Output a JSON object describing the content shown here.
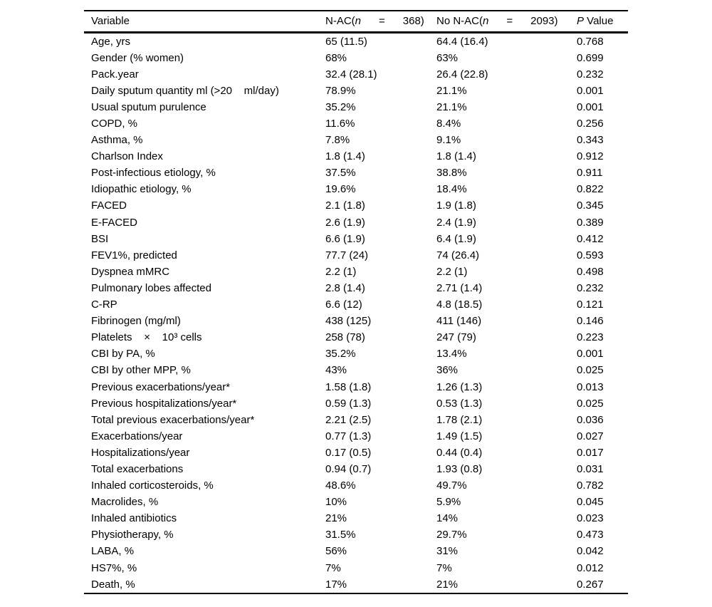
{
  "page": {
    "background_color": "#ffffff",
    "text_color": "#000000"
  },
  "table": {
    "headers": {
      "variable": "Variable",
      "nac": {
        "prefix": "N-AC(",
        "italic": "n",
        "suffix": "      =      368)"
      },
      "no_nac": {
        "prefix": "No N-AC(",
        "italic": "n",
        "suffix": "      =      2093)"
      },
      "p_value": {
        "italic": "P",
        "suffix": " Value"
      }
    },
    "rows": [
      {
        "variable": "Age, yrs",
        "nac": "65 (11.5)",
        "no_nac": "64.4 (16.4)",
        "p": "0.768"
      },
      {
        "variable": "Gender (% women)",
        "nac": "68%",
        "no_nac": "63%",
        "p": "0.699"
      },
      {
        "variable": "Pack.year",
        "nac": "32.4 (28.1)",
        "no_nac": "26.4 (22.8)",
        "p": "0.232"
      },
      {
        "variable": "Daily sputum quantity ml (>20    ml/day)",
        "nac": "78.9%",
        "no_nac": "21.1%",
        "p": "0.001"
      },
      {
        "variable": "Usual sputum purulence",
        "nac": "35.2%",
        "no_nac": "21.1%",
        "p": "0.001"
      },
      {
        "variable": "COPD, %",
        "nac": "11.6%",
        "no_nac": "8.4%",
        "p": "0.256"
      },
      {
        "variable": "Asthma, %",
        "nac": "7.8%",
        "no_nac": "9.1%",
        "p": "0.343"
      },
      {
        "variable": "Charlson Index",
        "nac": "1.8 (1.4)",
        "no_nac": "1.8 (1.4)",
        "p": "0.912"
      },
      {
        "variable": "Post-infectious etiology, %",
        "nac": "37.5%",
        "no_nac": "38.8%",
        "p": "0.911"
      },
      {
        "variable": "Idiopathic etiology, %",
        "nac": "19.6%",
        "no_nac": "18.4%",
        "p": "0.822"
      },
      {
        "variable": "FACED",
        "nac": "2.1 (1.8)",
        "no_nac": "1.9 (1.8)",
        "p": "0.345"
      },
      {
        "variable": "E-FACED",
        "nac": "2.6 (1.9)",
        "no_nac": "2.4 (1.9)",
        "p": "0.389"
      },
      {
        "variable": "BSI",
        "nac": "6.6 (1.9)",
        "no_nac": "6.4 (1.9)",
        "p": "0.412"
      },
      {
        "variable": "FEV1%, predicted",
        "nac": "77.7 (24)",
        "no_nac": "74 (26.4)",
        "p": "0.593"
      },
      {
        "variable": "Dyspnea mMRC",
        "nac": "2.2 (1)",
        "no_nac": "2.2 (1)",
        "p": "0.498"
      },
      {
        "variable": "Pulmonary lobes affected",
        "nac": "2.8 (1.4)",
        "no_nac": "2.71 (1.4)",
        "p": "0.232"
      },
      {
        "variable": "C-RP",
        "nac": "6.6 (12)",
        "no_nac": "4.8 (18.5)",
        "p": "0.121"
      },
      {
        "variable": "Fibrinogen (mg/ml)",
        "nac": "438 (125)",
        "no_nac": "411 (146)",
        "p": "0.146"
      },
      {
        "variable": "Platelets    ×    10³ cells",
        "nac": "258 (78)",
        "no_nac": "247 (79)",
        "p": "0.223"
      },
      {
        "variable": "CBI by PA, %",
        "nac": "35.2%",
        "no_nac": "13.4%",
        "p": "0.001"
      },
      {
        "variable": "CBI by other MPP, %",
        "nac": "43%",
        "no_nac": "36%",
        "p": "0.025"
      },
      {
        "variable": "Previous exacerbations/year*",
        "nac": "1.58 (1.8)",
        "no_nac": "1.26 (1.3)",
        "p": "0.013"
      },
      {
        "variable": "Previous hospitalizations/year*",
        "nac": "0.59 (1.3)",
        "no_nac": "0.53 (1.3)",
        "p": "0.025"
      },
      {
        "variable": "Total previous exacerbations/year*",
        "nac": "2.21 (2.5)",
        "no_nac": "1.78 (2.1)",
        "p": "0.036"
      },
      {
        "variable": "Exacerbations/year",
        "nac": "0.77 (1.3)",
        "no_nac": "1.49 (1.5)",
        "p": "0.027"
      },
      {
        "variable": "Hospitalizations/year",
        "nac": "0.17 (0.5)",
        "no_nac": "0.44 (0.4)",
        "p": "0.017"
      },
      {
        "variable": "Total exacerbations",
        "nac": "0.94 (0.7)",
        "no_nac": "1.93 (0.8)",
        "p": "0.031"
      },
      {
        "variable": "Inhaled corticosteroids, %",
        "nac": "48.6%",
        "no_nac": "49.7%",
        "p": "0.782"
      },
      {
        "variable": "Macrolides, %",
        "nac": "10%",
        "no_nac": "5.9%",
        "p": "0.045"
      },
      {
        "variable": "Inhaled antibiotics",
        "nac": "21%",
        "no_nac": "14%",
        "p": "0.023"
      },
      {
        "variable": "Physiotherapy, %",
        "nac": "31.5%",
        "no_nac": "29.7%",
        "p": "0.473"
      },
      {
        "variable": "LABA, %",
        "nac": "56%",
        "no_nac": "31%",
        "p": "0.042"
      },
      {
        "variable": "HS7%, %",
        "nac": "7%",
        "no_nac": "7%",
        "p": "0.012"
      },
      {
        "variable": "Death, %",
        "nac": "17%",
        "no_nac": "21%",
        "p": "0.267"
      }
    ]
  }
}
